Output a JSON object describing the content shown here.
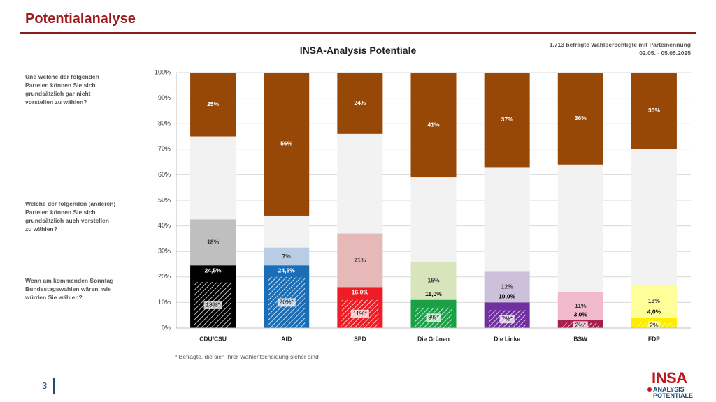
{
  "header": {
    "title": "Potentialanalyse"
  },
  "chart_title": "INSA-Analysis Potentiale",
  "sample_note": {
    "line1": "1.713 befragte Wahlberechtigte mit Parteinennung",
    "line2": "02.05. - 05.05.2025"
  },
  "questions": {
    "q1": "Und welche der folgenden Parteien können Sie sich grundsätzlich gar nicht vorstellen zu wählen?",
    "q2": "Welche der folgenden (anderen) Parteien können Sie sich grundsätzlich auch vorstellen zu wählen?",
    "q3": "Wenn am kommenden Sonntag Bundestagswahlen wären, wie würden Sie wählen?"
  },
  "footnote": "* Befragte, die sich ihrer Wahlentscheidung sicher sind",
  "page_number": "3",
  "logo": {
    "brand": "INSA",
    "line2": "ANALYSIS",
    "line3": "POTENTIALE"
  },
  "chart_data": {
    "type": "bar",
    "stacked": true,
    "ylim": [
      0,
      100
    ],
    "yticks": [
      "0%",
      "10%",
      "20%",
      "30%",
      "40%",
      "50%",
      "60%",
      "70%",
      "80%",
      "90%",
      "100%"
    ],
    "grid": true,
    "categories": [
      "CDU/CSU",
      "AfD",
      "SPD",
      "Die Grünen",
      "Die Linke",
      "BSW",
      "FDP"
    ],
    "colors": {
      "vote": [
        "#000000",
        "#1a6eb7",
        "#ee1c25",
        "#1aa146",
        "#7030a0",
        "#a6204b",
        "#ffed00"
      ],
      "potential": [
        "#bfbfbf",
        "#b8cce4",
        "#e6b8b7",
        "#d8e4bc",
        "#ccc0da",
        "#f2b8cb",
        "#ffff99"
      ],
      "undecided": "#f2f2f2",
      "rejection": "#974706"
    },
    "vote": [
      24.5,
      24.5,
      16.0,
      11.0,
      10.0,
      3.0,
      4.0
    ],
    "vote_labels": [
      "24,5%",
      "24,5%",
      "16,0%",
      "11,0%",
      "10,0%",
      "3,0%",
      "4,0%"
    ],
    "vote_sure": [
      18,
      20,
      11,
      8,
      7,
      2,
      2
    ],
    "vote_sure_labels": [
      "18%*",
      "20%*",
      "11%*",
      "8%*",
      "7%*",
      "2%*",
      "2%"
    ],
    "potential": [
      18,
      7,
      21,
      15,
      12,
      11,
      13
    ],
    "potential_labels": [
      "18%",
      "7%",
      "21%",
      "15%",
      "12%",
      "11%",
      "13%"
    ],
    "rejection": [
      25,
      56,
      24,
      41,
      37,
      36,
      30
    ],
    "rejection_labels": [
      "25%",
      "56%",
      "24%",
      "41%",
      "37%",
      "36%",
      "30%"
    ]
  }
}
